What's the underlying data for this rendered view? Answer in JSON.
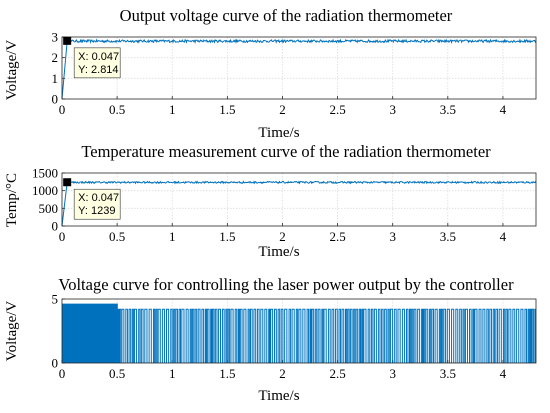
{
  "chart_data": [
    {
      "type": "line",
      "title": "Output voltage curve of the radiation thermometer",
      "xlabel": "Time/s",
      "ylabel": "Voltage/V",
      "xlim": [
        0,
        4.3
      ],
      "ylim": [
        0,
        3
      ],
      "xticks": [
        "0",
        "0.5",
        "1",
        "1.5",
        "2",
        "2.5",
        "3",
        "3.5",
        "4"
      ],
      "yticks": [
        "0",
        "1",
        "2",
        "3"
      ],
      "grid": true,
      "color": "#0072bd",
      "series": [
        {
          "signal": "ramp-then-steady",
          "rise_start_x": 0.0,
          "rise_end_x": 0.047,
          "steady_value": 2.8,
          "noise_amplitude": 0.06
        }
      ],
      "datatip": {
        "x": 0.047,
        "y": 2.814,
        "x_text": "X: 0.047",
        "y_text": "Y: 2.814"
      }
    },
    {
      "type": "line",
      "title": "Temperature measurement curve of the radiation thermometer",
      "xlabel": "Time/s",
      "ylabel": "Temp/°C",
      "xlim": [
        0,
        4.3
      ],
      "ylim": [
        0,
        1500
      ],
      "xticks": [
        "0",
        "0.5",
        "1",
        "1.5",
        "2",
        "2.5",
        "3",
        "3.5",
        "4"
      ],
      "yticks": [
        "0",
        "500",
        "1000",
        "1500"
      ],
      "grid": true,
      "color": "#0072bd",
      "series": [
        {
          "signal": "ramp-then-steady",
          "rise_start_x": 0.0,
          "rise_end_x": 0.047,
          "steady_value": 1235,
          "noise_amplitude": 25
        }
      ],
      "datatip": {
        "x": 0.047,
        "y": 1239,
        "x_text": "X: 0.047",
        "y_text": "Y: 1239"
      }
    },
    {
      "type": "line",
      "title": "Voltage curve for controlling the laser power output by the controller",
      "xlabel": "Time/s",
      "ylabel": "Voltage/V",
      "xlim": [
        0,
        4.3
      ],
      "ylim": [
        0,
        5
      ],
      "xticks": [
        "0",
        "0.5",
        "1",
        "1.5",
        "2",
        "2.5",
        "3",
        "3.5",
        "4"
      ],
      "yticks": [
        "0",
        "5"
      ],
      "grid": true,
      "color": "#0072bd",
      "series": [
        {
          "signal": "pwm-switching",
          "low": 0,
          "high_initial": 4.6,
          "high_later": 4.2,
          "dense_region_end_x": 0.5
        }
      ]
    }
  ]
}
